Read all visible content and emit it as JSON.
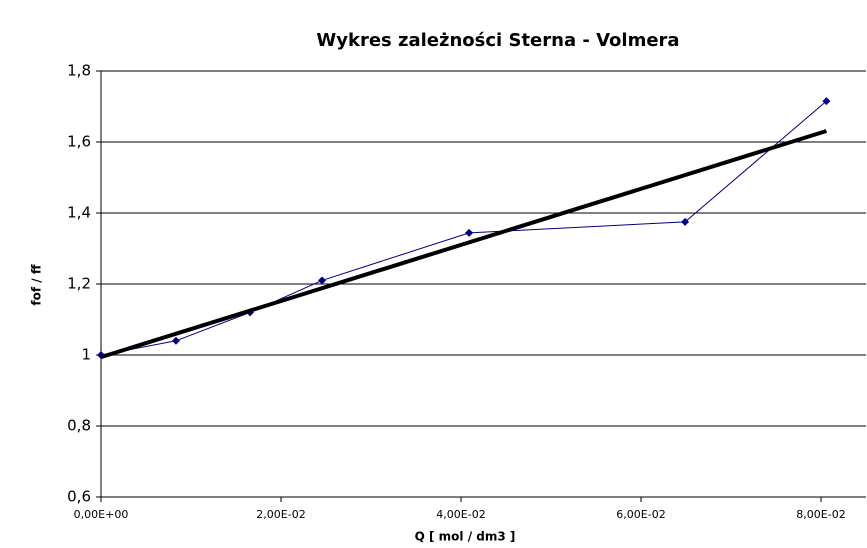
{
  "chart_data": {
    "type": "line",
    "title": "Wykres zależności Sterna - Volmera",
    "x_label": "Q [ mol / dm3 ]",
    "y_label": "fof / ff",
    "series": [
      {
        "color": "#000080",
        "x": [
          0,
          0.00833,
          0.01656,
          0.02456,
          0.0409,
          0.0649,
          0.0806
        ],
        "values": [
          1.0,
          1.04,
          1.12,
          1.21,
          1.344,
          1.375,
          1.715
        ]
      }
    ],
    "trendline": {
      "color": "#000000",
      "x": [
        0,
        0.0806
      ],
      "values": [
        0.994,
        1.631
      ]
    },
    "xlim": [
      0,
      0.085
    ],
    "xticks": [
      {
        "value": 0,
        "label": "0,00E+00"
      },
      {
        "value": 0.02,
        "label": "2,00E-02"
      },
      {
        "value": 0.04,
        "label": "4,00E-02"
      },
      {
        "value": 0.06,
        "label": "6,00E-02"
      },
      {
        "value": 0.08,
        "label": "8,00E-02"
      }
    ],
    "ylim": [
      0.6,
      1.8
    ],
    "yticks": [
      {
        "value": 0.6,
        "label": "0,6"
      },
      {
        "value": 0.8,
        "label": "0,8"
      },
      1,
      {
        "value": 1.2,
        "label": "1,2"
      },
      {
        "value": 1.4,
        "label": "1,4"
      },
      {
        "value": 1.6,
        "label": "1,6"
      },
      {
        "value": 1.8,
        "label": "1,8"
      }
    ],
    "grid": true
  }
}
